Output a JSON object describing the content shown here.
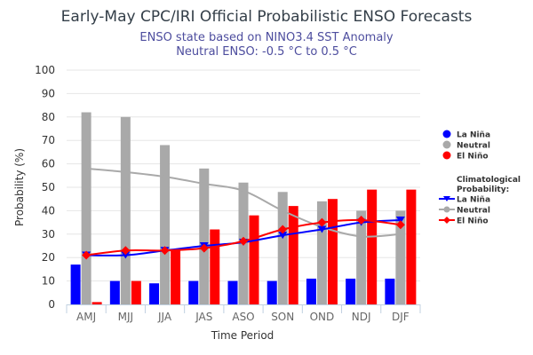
{
  "chart_data": {
    "type": "bar",
    "title": "Early-May CPC/IRI Official Probabilistic ENSO Forecasts",
    "subtitle_lines": [
      "ENSO state based on NINO3.4 SST Anomaly",
      "Neutral ENSO: -0.5 °C to 0.5 °C"
    ],
    "xlabel": "Time Period",
    "ylabel": "Probability (%)",
    "ylim": [
      0,
      100
    ],
    "yticks": [
      0,
      10,
      20,
      30,
      40,
      50,
      60,
      70,
      80,
      90,
      100
    ],
    "grid": true,
    "categories": [
      "AMJ",
      "MJJ",
      "JJA",
      "JAS",
      "ASO",
      "SON",
      "OND",
      "NDJ",
      "DJF"
    ],
    "series": [
      {
        "name": "La Niña",
        "kind": "bar",
        "color": "#0000ff",
        "values": [
          17,
          10,
          9,
          10,
          10,
          10,
          11,
          11,
          11
        ]
      },
      {
        "name": "Neutral",
        "kind": "bar",
        "color": "#a9a9a9",
        "values": [
          82,
          80,
          68,
          58,
          52,
          48,
          44,
          40,
          40
        ]
      },
      {
        "name": "El Niño",
        "kind": "bar",
        "color": "#ff0000",
        "values": [
          1,
          10,
          23,
          32,
          38,
          42,
          45,
          49,
          49
        ]
      }
    ],
    "climatology_title": "Climatological Probability:",
    "climatology": [
      {
        "name": "La Niña",
        "kind": "line",
        "marker": "triangle-down",
        "color": "#0000ff",
        "values": [
          21,
          21,
          23,
          25,
          26.5,
          29.5,
          32,
          35,
          36
        ]
      },
      {
        "name": "Neutral",
        "kind": "line",
        "marker": "none",
        "color": "#a9a9a9",
        "values": [
          58,
          56.5,
          54.5,
          51.5,
          48.5,
          40,
          33,
          29,
          30
        ]
      },
      {
        "name": "El Niño",
        "kind": "line",
        "marker": "diamond",
        "color": "#ff0000",
        "values": [
          21,
          23,
          23,
          24,
          27,
          32,
          35,
          36,
          34
        ]
      }
    ],
    "legend_position": "right"
  }
}
